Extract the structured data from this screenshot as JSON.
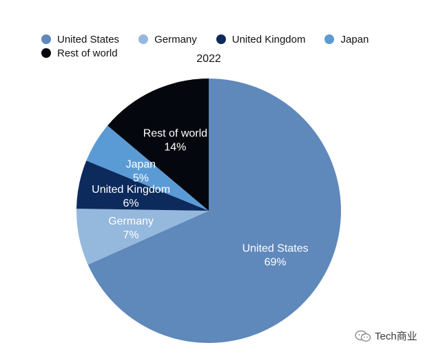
{
  "chart_data": {
    "type": "pie",
    "title": "2022",
    "slices": [
      {
        "label": "United States",
        "value": 69,
        "value_label": "69%",
        "color": "#5f88bb"
      },
      {
        "label": "Germany",
        "value": 7,
        "value_label": "7%",
        "color": "#95b8dd"
      },
      {
        "label": "United Kingdom",
        "value": 6,
        "value_label": "6%",
        "color": "#0c2a5c"
      },
      {
        "label": "Japan",
        "value": 5,
        "value_label": "5%",
        "color": "#5b9bd5"
      },
      {
        "label": "Rest of world",
        "value": 14,
        "value_label": "14%",
        "color": "#04070d"
      }
    ],
    "legend": {
      "placement": "top-left",
      "entries": [
        "United States",
        "Germany",
        "United Kingdom",
        "Japan",
        "Rest of world"
      ]
    }
  },
  "watermark": {
    "text": "Tech商业",
    "icon": "wechat-icon"
  }
}
